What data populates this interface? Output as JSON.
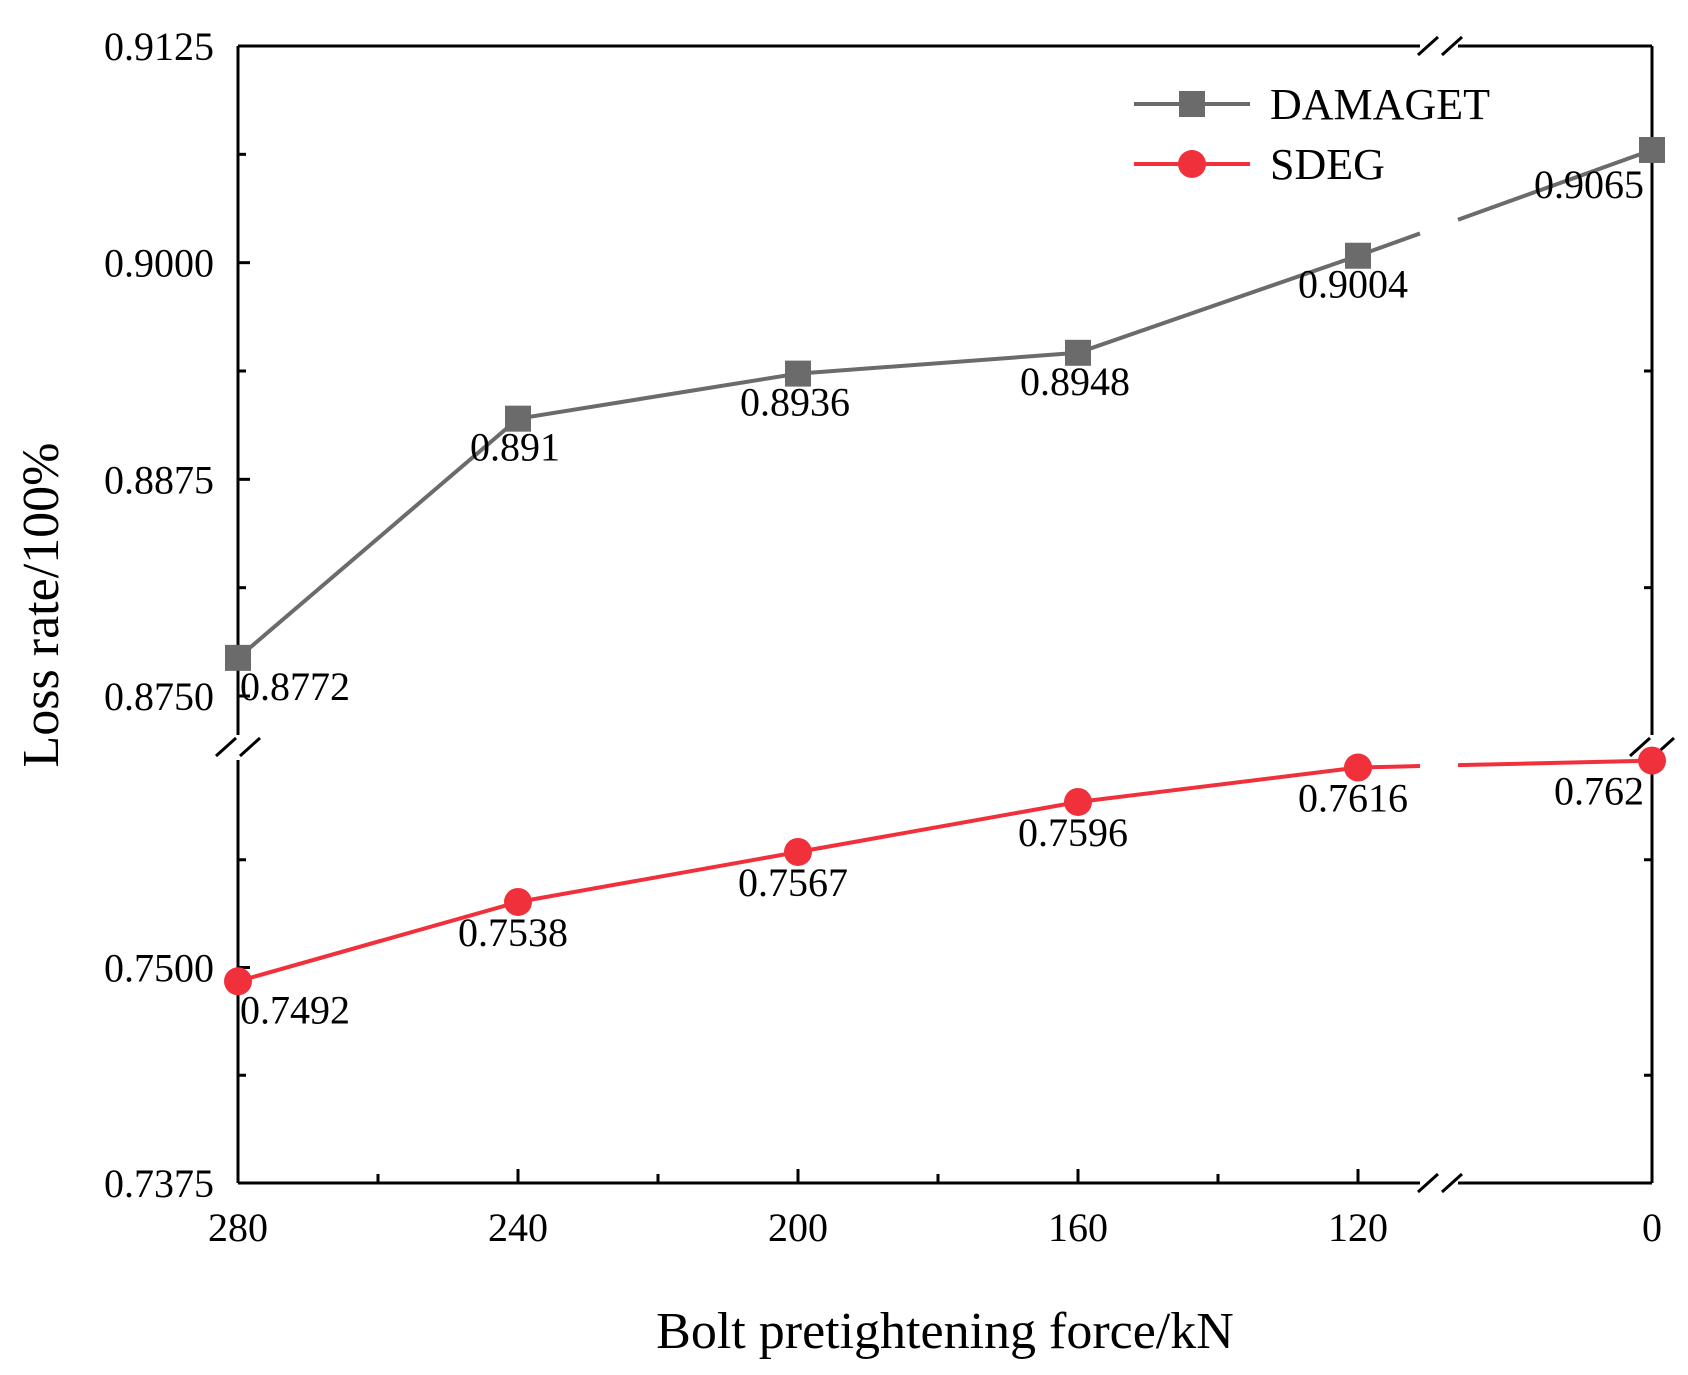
{
  "chart_data": {
    "type": "line",
    "title": "",
    "xlabel": "Bolt pretightening force/kN",
    "ylabel": "Loss rate/100%",
    "x_tick_labels": [
      "280",
      "240",
      "200",
      "160",
      "120",
      "0"
    ],
    "y_tick_labels_upper": [
      "0.8750",
      "0.8875",
      "0.9000",
      "0.9125"
    ],
    "y_tick_labels_lower": [
      "0.7375",
      "0.7500"
    ],
    "y_axis_break": true,
    "x_axis_break": true,
    "ylim_upper": [
      0.875,
      0.9125
    ],
    "ylim_lower": [
      0.7375,
      0.7625
    ],
    "legend_position": "top-right",
    "series": [
      {
        "name": "DAMAGET",
        "color": "#6b6b6b",
        "marker": "square",
        "segment": "upper",
        "values": [
          0.8772,
          0.891,
          0.8936,
          0.8948,
          0.9004,
          0.9065
        ],
        "labels": [
          "0.8772",
          "0.891",
          "0.8936",
          "0.8948",
          "0.9004",
          "0.9065"
        ]
      },
      {
        "name": "SDEG",
        "color": "#f0303a",
        "marker": "circle",
        "segment": "lower",
        "values": [
          0.7492,
          0.7538,
          0.7567,
          0.7596,
          0.7616,
          0.762
        ],
        "labels": [
          "0.7492",
          "0.7538",
          "0.7567",
          "0.7596",
          "0.7616",
          "0.762"
        ]
      }
    ]
  }
}
